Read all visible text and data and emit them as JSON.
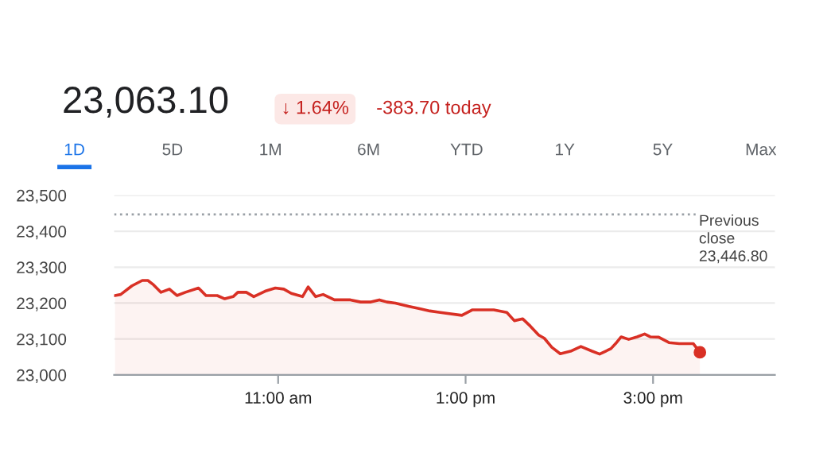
{
  "chart_data": {
    "type": "area",
    "title": "23,063.10",
    "annotations": [
      "↓ 1.64%",
      "-383.70 today",
      "1D",
      "5D",
      "1M",
      "6M",
      "YTD",
      "1Y",
      "5Y",
      "Max"
    ],
    "series": [
      {
        "color": "#d93025",
        "x": [
          9.26,
          9.32,
          9.44,
          9.55,
          9.61,
          9.67,
          9.75,
          9.84,
          9.92,
          10.01,
          10.15,
          10.23,
          10.35,
          10.43,
          10.52,
          10.57,
          10.66,
          10.74,
          10.86,
          10.97,
          11.06,
          11.14,
          11.26,
          11.32,
          11.4,
          11.48,
          11.6,
          11.77,
          11.88,
          11.99,
          12.08,
          12.16,
          12.25,
          12.39,
          12.5,
          12.62,
          12.73,
          12.96,
          13.07,
          13.3,
          13.44,
          13.52,
          13.61,
          13.69,
          13.78,
          13.84,
          13.92,
          14.01,
          14.12,
          14.23,
          14.35,
          14.43,
          14.55,
          14.6,
          14.66,
          14.74,
          14.83,
          14.91,
          14.97,
          15.06,
          15.17,
          15.28,
          15.43,
          15.5
        ],
        "values": [
          23221,
          23224,
          23248,
          23263,
          23263,
          23251,
          23230,
          23239,
          23221,
          23230,
          23242,
          23221,
          23221,
          23212,
          23218,
          23230,
          23230,
          23218,
          23233,
          23242,
          23239,
          23227,
          23218,
          23245,
          23218,
          23224,
          23209,
          23209,
          23203,
          23203,
          23209,
          23203,
          23200,
          23191,
          23185,
          23178,
          23174,
          23166,
          23181,
          23181,
          23174,
          23151,
          23156,
          23136,
          23111,
          23102,
          23077,
          23059,
          23066,
          23079,
          23066,
          23058,
          23073,
          23087,
          23106,
          23099,
          23106,
          23114,
          23106,
          23105,
          23090,
          23087,
          23087,
          23063
        ]
      },
      {
        "type": "scatter",
        "color": "#d93025",
        "marker": "circle",
        "x": [
          15.5
        ],
        "values": [
          23063
        ]
      }
    ],
    "xlim": [
      9.25,
      16.3
    ],
    "xticks": [
      {
        "value": 11,
        "label": "11:00 am"
      },
      {
        "value": 13,
        "label": "1:00 pm"
      },
      {
        "value": 15,
        "label": "3:00 pm"
      }
    ],
    "ylim": [
      23000,
      23500
    ],
    "yticks": [
      {
        "value": 23000,
        "label": "23,000"
      },
      {
        "value": 23100,
        "label": "23,100"
      },
      {
        "value": 23200,
        "label": "23,200"
      },
      {
        "value": 23300,
        "label": "23,300"
      },
      {
        "value": 23400,
        "label": "23,400"
      },
      {
        "value": 23500,
        "label": "23,500"
      }
    ],
    "grid": "y",
    "ref_lines": [
      {
        "axis": "y",
        "value": 23446.8,
        "label": "Previous\nclose\n23,446.80",
        "color": "#9aa0a6",
        "line_style": "dotted"
      }
    ]
  }
}
